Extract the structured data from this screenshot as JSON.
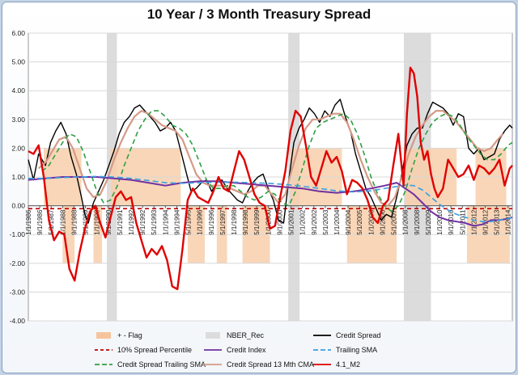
{
  "chart_data": {
    "type": "line",
    "title": "10 Year / 3 Month Treasury Spread",
    "ylim": [
      -4,
      6
    ],
    "y_ticks": [
      "6.00",
      "5.00",
      "4.00",
      "3.00",
      "2.00",
      "1.00",
      "0.00",
      "-1.00",
      "-2.00",
      "-3.00",
      "-4.00"
    ],
    "x_ticks": [
      "1/1/1986",
      "9/1/1986",
      "5/1/1987",
      "1/1/1988",
      "9/1/1988",
      "5/1/1989",
      "1/1/1990",
      "9/1/1990",
      "5/1/1991",
      "1/1/1992",
      "9/1/1992",
      "5/1/1993",
      "1/1/1994",
      "9/1/1994",
      "5/1/1995",
      "1/1/1996",
      "9/1/1996",
      "5/1/1997",
      "1/1/1998",
      "9/1/1998",
      "5/1/1999",
      "1/1/2000",
      "9/1/2000",
      "5/1/2001",
      "1/1/2002",
      "9/1/2002",
      "5/1/2003",
      "1/1/2004",
      "9/1/2004",
      "5/1/2005",
      "1/1/2006",
      "9/1/2006",
      "5/1/2007",
      "1/1/2008",
      "9/1/2008",
      "5/1/2009",
      "1/1/2010",
      "9/1/2010",
      "5/1/2011",
      "1/1/2012",
      "9/1/2012",
      "5/1/2013",
      "1/1/2014"
    ],
    "x_range": [
      1986.0,
      2014.25
    ],
    "grid": true,
    "legend_position": "bottom",
    "recessions": [
      [
        1990.58,
        1991.17
      ],
      [
        2001.17,
        2001.83
      ],
      [
        2007.92,
        2009.5
      ]
    ],
    "flag_periods": [
      {
        "start": 1986.9,
        "end": 1989.1,
        "value": 2
      },
      {
        "start": 1988.0,
        "end": 1988.7,
        "value": -2
      },
      {
        "start": 1989.8,
        "end": 1990.3,
        "value": -2
      },
      {
        "start": 1990.8,
        "end": 1994.9,
        "value": 2
      },
      {
        "start": 1995.3,
        "end": 1996.3,
        "value": -2
      },
      {
        "start": 1997.0,
        "end": 1997.6,
        "value": -2
      },
      {
        "start": 1998.5,
        "end": 2000.1,
        "value": -2
      },
      {
        "start": 2001.3,
        "end": 2004.3,
        "value": 2
      },
      {
        "start": 2004.6,
        "end": 2007.5,
        "value": -2
      },
      {
        "start": 2008.0,
        "end": 2011.0,
        "value": 2
      },
      {
        "start": 2011.6,
        "end": 2014.1,
        "value": -2
      },
      {
        "start": 2012.1,
        "end": 2013.9,
        "value": 2
      }
    ],
    "series": [
      {
        "name": "Credit Spread",
        "color": "#000000",
        "dash": "",
        "width": 1.4,
        "x": [
          1986.0,
          1986.3,
          1986.6,
          1987.0,
          1987.3,
          1987.6,
          1987.9,
          1988.2,
          1988.5,
          1988.8,
          1989.1,
          1989.3,
          1989.5,
          1989.8,
          1990.1,
          1990.4,
          1990.7,
          1991.0,
          1991.3,
          1991.6,
          1991.9,
          1992.2,
          1992.5,
          1992.8,
          1993.1,
          1993.4,
          1993.7,
          1994.0,
          1994.3,
          1994.6,
          1994.9,
          1995.2,
          1995.5,
          1995.8,
          1996.1,
          1996.4,
          1996.7,
          1997.0,
          1997.3,
          1997.6,
          1997.9,
          1998.2,
          1998.5,
          1998.8,
          1999.1,
          1999.4,
          1999.7,
          2000.0,
          2000.3,
          2000.6,
          2000.9,
          2001.2,
          2001.5,
          2001.8,
          2002.1,
          2002.4,
          2002.7,
          2003.0,
          2003.3,
          2003.6,
          2003.9,
          2004.2,
          2004.5,
          2004.8,
          2005.1,
          2005.4,
          2005.7,
          2006.0,
          2006.3,
          2006.6,
          2006.9,
          2007.2,
          2007.5,
          2007.8,
          2008.1,
          2008.4,
          2008.7,
          2009.0,
          2009.3,
          2009.6,
          2009.9,
          2010.2,
          2010.5,
          2010.8,
          2011.1,
          2011.4,
          2011.7,
          2012.0,
          2012.3,
          2012.6,
          2012.9,
          2013.2,
          2013.5,
          2013.8,
          2014.1,
          2014.25
        ],
        "y": [
          1.6,
          0.9,
          1.8,
          1.4,
          2.2,
          2.6,
          2.9,
          2.5,
          1.7,
          1.1,
          0.3,
          -0.3,
          -0.6,
          0.1,
          0.5,
          0.9,
          1.4,
          1.9,
          2.5,
          2.9,
          3.1,
          3.4,
          3.5,
          3.3,
          3.1,
          2.9,
          2.6,
          2.7,
          2.9,
          2.6,
          1.9,
          1.2,
          0.5,
          0.6,
          0.8,
          0.9,
          0.5,
          0.8,
          0.9,
          0.6,
          0.4,
          0.2,
          0.1,
          0.5,
          0.8,
          1.0,
          1.1,
          0.6,
          0.2,
          -0.5,
          -0.6,
          0.9,
          2.2,
          2.7,
          3.0,
          3.4,
          3.2,
          2.9,
          3.3,
          3.1,
          3.5,
          3.7,
          3.1,
          2.6,
          1.8,
          1.2,
          0.6,
          0.3,
          -0.1,
          -0.5,
          -0.3,
          -0.4,
          0.3,
          1.1,
          2.1,
          2.5,
          2.7,
          2.7,
          3.2,
          3.6,
          3.5,
          3.4,
          3.2,
          2.8,
          3.2,
          3.1,
          2.0,
          1.8,
          2.0,
          1.6,
          1.7,
          1.8,
          2.3,
          2.6,
          2.8,
          2.7
        ]
      },
      {
        "name": "Credit Spread 13 Mth CMA",
        "color": "#d49a86",
        "dash": "",
        "width": 2.2,
        "x": [
          1986.6,
          1987.0,
          1987.4,
          1987.8,
          1988.2,
          1988.6,
          1989.0,
          1989.4,
          1989.8,
          1990.2,
          1990.6,
          1991.0,
          1991.4,
          1991.8,
          1992.2,
          1992.6,
          1993.0,
          1993.4,
          1993.8,
          1994.2,
          1994.6,
          1995.0,
          1995.4,
          1995.8,
          1996.2,
          1996.6,
          1997.0,
          1997.4,
          1997.8,
          1998.2,
          1998.6,
          1999.0,
          1999.4,
          1999.8,
          2000.2,
          2000.6,
          2001.0,
          2001.4,
          2001.8,
          2002.2,
          2002.6,
          2003.0,
          2003.4,
          2003.8,
          2004.2,
          2004.6,
          2005.0,
          2005.4,
          2005.8,
          2006.2,
          2006.6,
          2007.0,
          2007.4,
          2007.8,
          2008.2,
          2008.6,
          2009.0,
          2009.4,
          2009.8,
          2010.2,
          2010.6,
          2011.0,
          2011.4,
          2011.8,
          2012.2,
          2012.6,
          2013.0,
          2013.4,
          2013.7
        ],
        "y": [
          1.3,
          1.5,
          1.9,
          2.3,
          2.4,
          2.0,
          1.3,
          0.6,
          0.3,
          0.4,
          0.9,
          1.6,
          2.2,
          2.7,
          3.1,
          3.3,
          3.2,
          3.0,
          2.8,
          2.7,
          2.6,
          2.3,
          1.7,
          1.1,
          0.8,
          0.7,
          0.7,
          0.7,
          0.6,
          0.5,
          0.4,
          0.5,
          0.7,
          0.7,
          0.4,
          0.1,
          0.4,
          1.3,
          2.1,
          2.7,
          3.0,
          3.0,
          3.1,
          3.2,
          3.2,
          2.9,
          2.3,
          1.6,
          1.0,
          0.5,
          0.1,
          0.0,
          0.3,
          1.0,
          1.8,
          2.4,
          2.8,
          3.1,
          3.3,
          3.3,
          3.1,
          2.9,
          2.6,
          2.3,
          2.0,
          1.9,
          2.0,
          2.3,
          2.5
        ]
      },
      {
        "name": "Credit Spread Trailing SMA",
        "color": "#2ea043",
        "dash": "6,4",
        "width": 1.6,
        "x": [
          1986.8,
          1987.2,
          1987.6,
          1988.0,
          1988.4,
          1988.8,
          1989.2,
          1989.6,
          1990.0,
          1990.4,
          1990.8,
          1991.2,
          1991.6,
          1992.0,
          1992.4,
          1992.8,
          1993.2,
          1993.6,
          1994.0,
          1994.4,
          1994.8,
          1995.2,
          1995.6,
          1996.0,
          1996.4,
          1996.8,
          1997.2,
          1997.6,
          1998.0,
          1998.4,
          1998.8,
          1999.2,
          1999.6,
          2000.0,
          2000.4,
          2000.8,
          2001.2,
          2001.6,
          2002.0,
          2002.4,
          2002.8,
          2003.2,
          2003.6,
          2004.0,
          2004.4,
          2004.8,
          2005.2,
          2005.6,
          2006.0,
          2006.4,
          2006.8,
          2007.2,
          2007.6,
          2008.0,
          2008.4,
          2008.8,
          2009.2,
          2009.6,
          2010.0,
          2010.4,
          2010.8,
          2011.2,
          2011.6,
          2012.0,
          2012.4,
          2012.8,
          2013.2,
          2013.6,
          2014.0,
          2014.25
        ],
        "y": [
          1.2,
          1.4,
          1.8,
          2.2,
          2.5,
          2.4,
          1.9,
          1.2,
          0.5,
          0.1,
          0.2,
          0.7,
          1.4,
          2.0,
          2.6,
          3.0,
          3.3,
          3.3,
          3.1,
          2.8,
          2.7,
          2.5,
          2.1,
          1.5,
          0.9,
          0.6,
          0.6,
          0.7,
          0.7,
          0.5,
          0.3,
          0.2,
          0.3,
          0.5,
          0.4,
          0.1,
          0.0,
          0.5,
          1.3,
          2.1,
          2.7,
          2.9,
          3.0,
          3.1,
          3.2,
          3.0,
          2.5,
          1.8,
          1.0,
          0.4,
          0.0,
          -0.2,
          0.0,
          0.5,
          1.3,
          2.0,
          2.5,
          2.9,
          3.1,
          3.2,
          3.1,
          2.8,
          2.4,
          2.1,
          1.8,
          1.6,
          1.6,
          1.8,
          2.1,
          2.2
        ]
      },
      {
        "name": "Credit Index",
        "color": "#7030a0",
        "dash": "",
        "width": 2.0,
        "x": [
          1986.0,
          1987.0,
          1988.0,
          1989.0,
          1990.0,
          1991.0,
          1992.0,
          1993.0,
          1994.0,
          1995.0,
          1996.0,
          1997.0,
          1998.0,
          1999.0,
          2000.0,
          2001.0,
          2002.0,
          2003.0,
          2004.0,
          2005.0,
          2006.0,
          2006.8,
          2007.5,
          2008.0,
          2008.5,
          2009.0,
          2009.5,
          2010.0,
          2010.5,
          2011.0,
          2011.5,
          2012.0,
          2012.5,
          2013.0,
          2013.5,
          2014.0,
          2014.25
        ],
        "y": [
          0.9,
          0.95,
          1.0,
          1.0,
          1.0,
          0.95,
          0.9,
          0.8,
          0.7,
          0.8,
          0.85,
          0.85,
          0.8,
          0.75,
          0.7,
          0.65,
          0.6,
          0.5,
          0.45,
          0.5,
          0.6,
          0.7,
          0.8,
          0.6,
          0.4,
          0.1,
          -0.2,
          -0.4,
          -0.5,
          -0.55,
          -0.6,
          -0.7,
          -0.65,
          -0.5,
          -0.5,
          -0.45,
          -0.4
        ]
      },
      {
        "name": "Trailing SMA",
        "color": "#3aa0e0",
        "dash": "7,4",
        "width": 1.6,
        "x": [
          1986.0,
          1987.0,
          1988.0,
          1989.0,
          1990.0,
          1991.0,
          1992.0,
          1993.0,
          1994.0,
          1995.0,
          1996.0,
          1997.0,
          1998.0,
          1999.0,
          2000.0,
          2001.0,
          2002.0,
          2003.0,
          2004.0,
          2005.0,
          2006.0,
          2007.0,
          2008.0,
          2008.5,
          2009.0,
          2009.5,
          2010.0,
          2010.5,
          2011.0,
          2011.5,
          2012.0,
          2012.5,
          2013.0,
          2013.5,
          2014.0,
          2014.25
        ],
        "y": [
          0.95,
          0.95,
          0.98,
          1.0,
          1.02,
          1.0,
          0.95,
          0.88,
          0.8,
          0.78,
          0.8,
          0.82,
          0.82,
          0.8,
          0.78,
          0.74,
          0.68,
          0.6,
          0.52,
          0.48,
          0.52,
          0.62,
          0.72,
          0.7,
          0.55,
          0.3,
          0.05,
          -0.15,
          -0.3,
          -0.4,
          -0.5,
          -0.55,
          -0.55,
          -0.5,
          -0.45,
          -0.4
        ]
      },
      {
        "name": "4.1_M2",
        "color": "#e00000",
        "dash": "",
        "width": 2.4,
        "x": [
          1986.0,
          1986.3,
          1986.6,
          1986.9,
          1987.2,
          1987.5,
          1987.8,
          1988.1,
          1988.4,
          1988.7,
          1989.0,
          1989.3,
          1989.6,
          1989.9,
          1990.2,
          1990.5,
          1990.8,
          1991.1,
          1991.4,
          1991.7,
          1992.0,
          1992.3,
          1992.6,
          1992.9,
          1993.2,
          1993.5,
          1993.8,
          1994.1,
          1994.4,
          1994.7,
          1995.0,
          1995.3,
          1995.6,
          1995.9,
          1996.2,
          1996.5,
          1996.8,
          1997.1,
          1997.4,
          1997.7,
          1998.0,
          1998.3,
          1998.6,
          1998.9,
          1999.2,
          1999.5,
          1999.8,
          2000.1,
          2000.4,
          2000.7,
          2001.0,
          2001.3,
          2001.6,
          2001.9,
          2002.2,
          2002.5,
          2002.8,
          2003.1,
          2003.4,
          2003.7,
          2004.0,
          2004.3,
          2004.6,
          2004.9,
          2005.2,
          2005.5,
          2005.8,
          2006.1,
          2006.4,
          2006.7,
          2007.0,
          2007.3,
          2007.6,
          2007.9,
          2008.1,
          2008.3,
          2008.5,
          2008.7,
          2008.9,
          2009.1,
          2009.3,
          2009.5,
          2009.7,
          2009.9,
          2010.2,
          2010.5,
          2010.8,
          2011.1,
          2011.4,
          2011.7,
          2012.0,
          2012.3,
          2012.6,
          2012.9,
          2013.2,
          2013.5,
          2013.8,
          2014.1,
          2014.25
        ],
        "y": [
          1.9,
          1.8,
          2.1,
          1.0,
          -0.5,
          -1.2,
          -0.9,
          -1.0,
          -2.2,
          -2.6,
          -1.6,
          -0.8,
          -0.2,
          0.0,
          -0.6,
          -1.1,
          -0.4,
          0.3,
          0.5,
          0.2,
          0.3,
          -0.6,
          -1.2,
          -1.8,
          -1.5,
          -1.7,
          -1.4,
          -1.9,
          -2.8,
          -2.9,
          -1.5,
          0.2,
          0.6,
          0.3,
          0.2,
          0.1,
          0.5,
          1.0,
          0.6,
          0.5,
          1.2,
          1.9,
          1.6,
          1.0,
          0.4,
          0.1,
          0.0,
          -0.8,
          -0.7,
          0.3,
          1.2,
          2.6,
          3.3,
          3.1,
          2.1,
          1.0,
          0.7,
          1.3,
          1.9,
          1.5,
          1.7,
          1.2,
          0.4,
          0.9,
          0.8,
          0.6,
          0.2,
          -0.4,
          -0.6,
          0.0,
          0.2,
          1.4,
          2.5,
          0.7,
          3.2,
          4.8,
          4.6,
          3.8,
          2.2,
          1.6,
          1.9,
          1.1,
          0.6,
          0.3,
          0.6,
          1.6,
          1.3,
          1.0,
          1.1,
          1.4,
          0.9,
          1.4,
          1.3,
          1.1,
          1.3,
          1.6,
          0.7,
          1.3,
          1.4
        ]
      }
    ],
    "percentile_line": {
      "name": "10% Spread Percentile",
      "color": "#c00000",
      "value": -0.1
    },
    "legend": [
      {
        "key": "flag",
        "label": "+ - Flag",
        "kind": "patch",
        "color": "#f5c49c"
      },
      {
        "key": "nber",
        "label": "NBER_Rec",
        "kind": "patch",
        "color": "#dcdcdc"
      },
      {
        "key": "credit_spread",
        "label": "Credit Spread",
        "kind": "line",
        "color": "#000000",
        "dash": ""
      },
      {
        "key": "pct",
        "label": "10% Spread Percentile",
        "kind": "line",
        "color": "#c00000",
        "dash": "4,3"
      },
      {
        "key": "credit_index",
        "label": "Credit Index",
        "kind": "line",
        "color": "#7030a0",
        "dash": ""
      },
      {
        "key": "trailing_sma",
        "label": "Trailing SMA",
        "kind": "line",
        "color": "#3aa0e0",
        "dash": "6,3"
      },
      {
        "key": "cs_trailing_sma",
        "label": "Credit Spread Trailing SMA",
        "kind": "line",
        "color": "#2ea043",
        "dash": "6,3"
      },
      {
        "key": "cs_cma",
        "label": "Credit Spread 13 Mth CMA",
        "kind": "line",
        "color": "#d49a86",
        "dash": ""
      },
      {
        "key": "m2",
        "label": "4.1_M2",
        "kind": "line",
        "color": "#e00000",
        "dash": ""
      }
    ]
  }
}
